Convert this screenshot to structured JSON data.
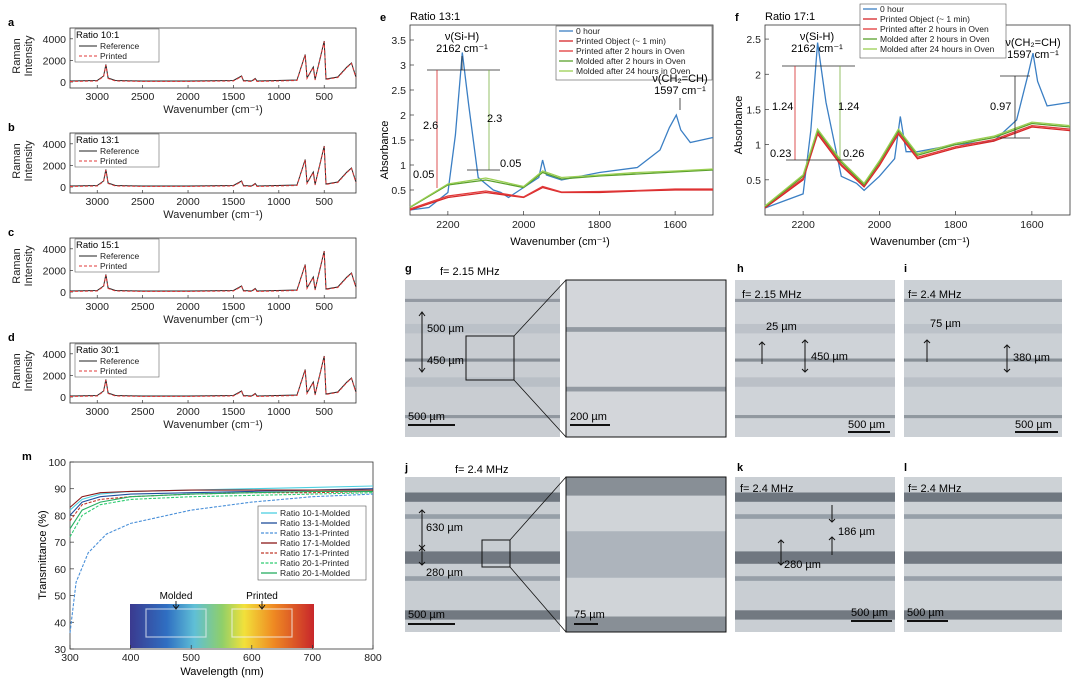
{
  "raman_panels": [
    {
      "label": "a",
      "title": "Ratio 10:1",
      "legend": [
        "Reference",
        "Printed"
      ]
    },
    {
      "label": "b",
      "title": "Ratio 13:1",
      "legend": [
        "Reference",
        "Printed"
      ]
    },
    {
      "label": "c",
      "title": "Ratio 15:1",
      "legend": [
        "Reference",
        "Printed"
      ]
    },
    {
      "label": "d",
      "title": "Ratio 30:1",
      "legend": [
        "Reference",
        "Printed"
      ]
    }
  ],
  "raman_axes": {
    "ylabel1": "Raman",
    "ylabel2": "Intensity",
    "xlabel": "Wavenumber (cm⁻¹)",
    "xticks": [
      "3000",
      "2500",
      "2000",
      "1500",
      "1000",
      "500"
    ],
    "yticks": [
      "0",
      "2000",
      "4000"
    ]
  },
  "chart_data": [
    {
      "type": "line",
      "panel": "e",
      "title": "Ratio 13:1",
      "xlabel": "Wavenumber (cm⁻¹)",
      "ylabel": "Absorbance",
      "xlim": [
        2300,
        1500
      ],
      "ylim": [
        0,
        3.8
      ],
      "xticks": [
        "2200",
        "2000",
        "1800",
        "1600"
      ],
      "yticks": [
        "0.5",
        "1",
        "1.5",
        "2",
        "2.5",
        "3",
        "3.5"
      ],
      "series": [
        {
          "name": "0 hour",
          "color": "#3b7fc4",
          "x": [
            2300,
            2250,
            2200,
            2180,
            2162,
            2145,
            2120,
            2080,
            2060,
            2040,
            2000,
            1960,
            1950,
            1940,
            1900,
            1800,
            1700,
            1640,
            1615,
            1597,
            1585,
            1560,
            1500
          ],
          "y": [
            0.1,
            0.15,
            0.45,
            1.6,
            3.25,
            2.2,
            0.75,
            0.5,
            0.45,
            0.35,
            0.55,
            0.75,
            1.1,
            0.8,
            0.7,
            0.85,
            0.95,
            1.3,
            1.75,
            2.0,
            1.7,
            1.45,
            1.55
          ]
        },
        {
          "name": "Printed Object (~ 1 min)",
          "color": "#d62728",
          "x": [
            2300,
            2200,
            2100,
            2000,
            1950,
            1900,
            1800,
            1700,
            1600,
            1500
          ],
          "y": [
            0.1,
            0.35,
            0.45,
            0.35,
            0.55,
            0.45,
            0.45,
            0.48,
            0.5,
            0.5
          ]
        },
        {
          "name": "Printed after 2 hours in Oven",
          "color": "#e23a3a",
          "x": [
            2300,
            2200,
            2100,
            2000,
            1950,
            1900,
            1800,
            1700,
            1600,
            1500
          ],
          "y": [
            0.12,
            0.38,
            0.48,
            0.36,
            0.57,
            0.46,
            0.47,
            0.49,
            0.52,
            0.52
          ]
        },
        {
          "name": "Molded after 2 hours in Oven",
          "color": "#5aa02c",
          "x": [
            2300,
            2200,
            2100,
            2000,
            1950,
            1900,
            1800,
            1700,
            1600,
            1500
          ],
          "y": [
            0.15,
            0.6,
            0.7,
            0.55,
            0.85,
            0.72,
            0.78,
            0.82,
            0.86,
            0.9
          ]
        },
        {
          "name": "Molded after 24 hours in Oven",
          "color": "#9bcf53",
          "x": [
            2300,
            2200,
            2100,
            2000,
            1950,
            1900,
            1800,
            1700,
            1600,
            1500
          ],
          "y": [
            0.16,
            0.62,
            0.74,
            0.57,
            0.88,
            0.75,
            0.8,
            0.85,
            0.88,
            0.92
          ]
        }
      ],
      "annotations": {
        "peak1": "ν(Si-H)",
        "peak1_wn": "2162 cm⁻¹",
        "peak2": "ν(CH₂=CH)",
        "peak2_wn": "1597 cm⁻¹",
        "v1": "2.6",
        "v2": "2.3",
        "v3": "0.05",
        "v4": "0.05"
      }
    },
    {
      "type": "line",
      "panel": "f",
      "title": "Ratio 17:1",
      "xlabel": "Wavenumber (cm⁻¹)",
      "ylabel": "Absorbance",
      "xlim": [
        2300,
        1500
      ],
      "ylim": [
        0,
        2.7
      ],
      "xticks": [
        "2200",
        "2000",
        "1800",
        "1600"
      ],
      "yticks": [
        "0.5",
        "1",
        "1.5",
        "2",
        "2.5"
      ],
      "series": [
        {
          "name": "0 hour",
          "color": "#3b7fc4",
          "x": [
            2300,
            2200,
            2180,
            2162,
            2140,
            2100,
            2060,
            2040,
            2000,
            1960,
            1945,
            1930,
            1900,
            1800,
            1700,
            1640,
            1610,
            1597,
            1585,
            1560,
            1500
          ],
          "y": [
            0.1,
            0.3,
            1.2,
            2.45,
            1.6,
            0.55,
            0.45,
            0.35,
            0.55,
            0.8,
            1.4,
            0.9,
            0.9,
            1.0,
            1.05,
            1.35,
            2.0,
            2.3,
            1.9,
            1.55,
            1.6
          ]
        },
        {
          "name": "Printed Object (~ 1 min)",
          "color": "#d62728",
          "x": [
            2300,
            2200,
            2162,
            2100,
            2040,
            2000,
            1950,
            1900,
            1800,
            1700,
            1600,
            1500
          ],
          "y": [
            0.1,
            0.5,
            1.15,
            0.7,
            0.4,
            0.7,
            1.15,
            0.8,
            0.95,
            1.05,
            1.25,
            1.2
          ]
        },
        {
          "name": "Printed after 2 hours in Oven",
          "color": "#e23a3a",
          "x": [
            2300,
            2200,
            2162,
            2100,
            2040,
            2000,
            1950,
            1900,
            1800,
            1700,
            1600,
            1500
          ],
          "y": [
            0.12,
            0.52,
            1.18,
            0.72,
            0.42,
            0.72,
            1.17,
            0.82,
            0.97,
            1.07,
            1.27,
            1.22
          ]
        },
        {
          "name": "Molded after 2 hours in Oven",
          "color": "#5aa02c",
          "x": [
            2300,
            2200,
            2162,
            2100,
            2040,
            2000,
            1950,
            1900,
            1800,
            1700,
            1600,
            1500
          ],
          "y": [
            0.12,
            0.55,
            1.2,
            0.75,
            0.43,
            0.75,
            1.2,
            0.85,
            1.0,
            1.1,
            1.3,
            1.25
          ]
        },
        {
          "name": "Molded after 24 hours in Oven",
          "color": "#9bcf53",
          "x": [
            2300,
            2200,
            2162,
            2100,
            2040,
            2000,
            1950,
            1900,
            1800,
            1700,
            1600,
            1500
          ],
          "y": [
            0.13,
            0.57,
            1.22,
            0.77,
            0.45,
            0.77,
            1.22,
            0.87,
            1.02,
            1.12,
            1.32,
            1.27
          ]
        }
      ],
      "annotations": {
        "peak1": "ν(Si-H)",
        "peak1_wn": "2162 cm⁻¹",
        "peak2": "ν(CH₂=CH)",
        "peak2_wn": "1597 cm⁻¹",
        "v1": "1.24",
        "v2": "1.24",
        "v3": "0.23",
        "v4": "0.26",
        "v5": "0.97"
      }
    },
    {
      "type": "line",
      "panel": "m",
      "xlabel": "Wavelength (nm)",
      "ylabel": "Transmittance (%)",
      "xlim": [
        300,
        800
      ],
      "ylim": [
        30,
        100
      ],
      "xticks": [
        "300",
        "400",
        "500",
        "600",
        "700",
        "800"
      ],
      "yticks": [
        "30",
        "40",
        "50",
        "60",
        "70",
        "80",
        "90",
        "100"
      ],
      "series": [
        {
          "name": "Ratio 10-1-Molded",
          "color": "#4dd0e1",
          "x": [
            300,
            320,
            350,
            400,
            500,
            600,
            700,
            800
          ],
          "y": [
            82,
            86,
            88,
            89,
            89.5,
            90,
            90.5,
            91
          ]
        },
        {
          "name": "Ratio 13-1-Molded",
          "color": "#1f4e9c",
          "x": [
            300,
            320,
            350,
            400,
            500,
            600,
            700,
            800
          ],
          "y": [
            80,
            85,
            87,
            88,
            88.5,
            89,
            89.5,
            90
          ]
        },
        {
          "name": "Ratio 13-1-Printed",
          "color": "#4a90d9",
          "x": [
            300,
            310,
            330,
            360,
            400,
            500,
            600,
            700,
            800
          ],
          "y": [
            36,
            55,
            66,
            73,
            77,
            82,
            85,
            87,
            88
          ]
        },
        {
          "name": "Ratio 17-1-Molded",
          "color": "#8b1a1a",
          "x": [
            300,
            320,
            350,
            400,
            500,
            600,
            700,
            800
          ],
          "y": [
            83,
            87,
            88.5,
            89,
            89.5,
            89.5,
            89.5,
            89.5
          ]
        },
        {
          "name": "Ratio 17-1-Printed",
          "color": "#c0392b",
          "x": [
            300,
            320,
            350,
            400,
            500,
            600,
            700,
            800
          ],
          "y": [
            78,
            84,
            86,
            87,
            88,
            88.5,
            88.5,
            89
          ]
        },
        {
          "name": "Ratio 20-1-Printed",
          "color": "#2ecc71",
          "x": [
            300,
            320,
            350,
            400,
            500,
            600,
            700,
            800
          ],
          "y": [
            72,
            80,
            84,
            86,
            87,
            87.5,
            88,
            88.5
          ]
        },
        {
          "name": "Ratio 20-1-Molded",
          "color": "#27ae60",
          "x": [
            300,
            320,
            350,
            400,
            500,
            600,
            700,
            800
          ],
          "y": [
            75,
            82,
            85,
            87,
            88,
            88.5,
            89,
            89
          ]
        }
      ],
      "inset": {
        "molded": "Molded",
        "printed": "Printed"
      }
    }
  ],
  "micro": {
    "g": {
      "label": "g",
      "freq": "f= 2.15 MHz",
      "m1": "500 µm",
      "m2": "450 µm",
      "scale": "500 µm",
      "zoom_scale": "200 µm"
    },
    "h": {
      "label": "h",
      "freq": "f= 2.15 MHz",
      "m1": "25 µm",
      "m2": "450 µm",
      "scale": "500 µm"
    },
    "i": {
      "label": "i",
      "freq": "f= 2.4 MHz",
      "m1": "75 µm",
      "m2": "380 µm",
      "scale": "500 µm"
    },
    "j": {
      "label": "j",
      "freq": "f= 2.4 MHz",
      "m1": "630 µm",
      "m2": "280 µm",
      "scale": "500 µm",
      "zoom_scale": "75 µm"
    },
    "k": {
      "label": "k",
      "freq": "f= 2.4 MHz",
      "m1": "186 µm",
      "m2": "280 µm",
      "scale": "500 µm"
    },
    "l": {
      "label": "l",
      "freq": "f= 2.4 MHz",
      "scale": "500 µm"
    }
  }
}
